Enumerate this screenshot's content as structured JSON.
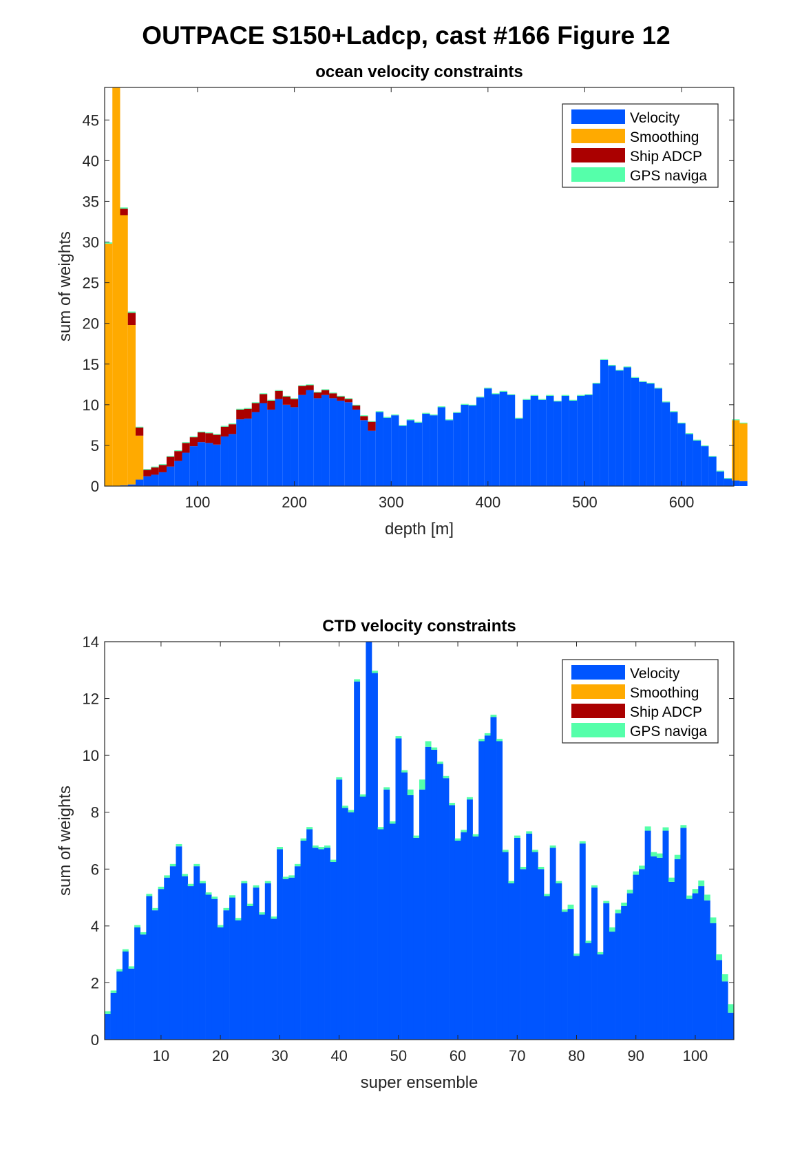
{
  "figure": {
    "title": "OUTPACE S150+Ladcp, cast #166  Figure 12"
  },
  "legend": {
    "entries": [
      {
        "label": "Velocity",
        "color": "#0055ff"
      },
      {
        "label": "Smoothing",
        "color": "#ffaa00"
      },
      {
        "label": "Ship ADCP",
        "color": "#aa0000"
      },
      {
        "label": "GPS naviga",
        "color": "#55ffaa"
      }
    ]
  },
  "chart_data": [
    {
      "type": "bar",
      "stacked": true,
      "title": "ocean velocity constraints",
      "xlabel": "depth [m]",
      "ylabel": "sum of weights",
      "xlim": [
        4,
        654
      ],
      "ylim": [
        0,
        49
      ],
      "xticks": [
        100,
        200,
        300,
        400,
        500,
        600
      ],
      "yticks": [
        0,
        5,
        10,
        15,
        20,
        25,
        30,
        35,
        40,
        45
      ],
      "legend_position": "top-right",
      "grid": false,
      "bin_width": 8,
      "x_start": 4,
      "series_names": [
        "Velocity",
        "Smoothing",
        "Ship ADCP",
        "GPS naviga"
      ],
      "bars": [
        [
          0,
          29.8,
          0,
          0.15
        ],
        [
          0,
          49,
          0,
          0.15
        ],
        [
          0.1,
          33.2,
          0.8,
          0.15
        ],
        [
          0.2,
          19.6,
          1.5,
          0.15
        ],
        [
          0.8,
          5.4,
          1.0,
          0.1
        ],
        [
          1.2,
          0,
          0.8,
          0.1
        ],
        [
          1.4,
          0,
          0.9,
          0.1
        ],
        [
          1.7,
          0,
          0.9,
          0.1
        ],
        [
          2.4,
          0,
          1.2,
          0.1
        ],
        [
          3.1,
          0,
          1.2,
          0.1
        ],
        [
          4.1,
          0,
          1.2,
          0.1
        ],
        [
          4.9,
          0,
          1.1,
          0.1
        ],
        [
          5.4,
          0,
          1.2,
          0.1
        ],
        [
          5.3,
          0,
          1.2,
          0.1
        ],
        [
          5.1,
          0,
          1.2,
          0.1
        ],
        [
          6.1,
          0,
          1.2,
          0.1
        ],
        [
          6.4,
          0,
          1.2,
          0.1
        ],
        [
          8.2,
          0,
          1.2,
          0.1
        ],
        [
          8.3,
          0,
          1.2,
          0.1
        ],
        [
          9.1,
          0,
          1.1,
          0.1
        ],
        [
          10.2,
          0,
          1.1,
          0.1
        ],
        [
          9.4,
          0,
          1.1,
          0.1
        ],
        [
          10.7,
          0,
          1.0,
          0.1
        ],
        [
          10.0,
          0,
          1.0,
          0.1
        ],
        [
          9.7,
          0,
          1.0,
          0.1
        ],
        [
          11.2,
          0,
          1.1,
          0.1
        ],
        [
          11.8,
          0,
          0.6,
          0.1
        ],
        [
          10.8,
          0,
          0.7,
          0.1
        ],
        [
          11.2,
          0,
          0.6,
          0.1
        ],
        [
          10.8,
          0,
          0.6,
          0.1
        ],
        [
          10.5,
          0,
          0.5,
          0.1
        ],
        [
          10.3,
          0,
          0.4,
          0.1
        ],
        [
          9.4,
          0,
          0.5,
          0.1
        ],
        [
          8.1,
          0,
          0.5,
          0.1
        ],
        [
          6.8,
          0,
          1.1,
          0.1
        ],
        [
          9.1,
          0,
          0,
          0.1
        ],
        [
          8.4,
          0,
          0,
          0.1
        ],
        [
          8.7,
          0,
          0,
          0.1
        ],
        [
          7.4,
          0,
          0,
          0.1
        ],
        [
          8.1,
          0,
          0,
          0.1
        ],
        [
          7.8,
          0,
          0,
          0.1
        ],
        [
          8.9,
          0,
          0,
          0.1
        ],
        [
          8.7,
          0,
          0,
          0.1
        ],
        [
          9.7,
          0,
          0,
          0.1
        ],
        [
          8.1,
          0,
          0,
          0.1
        ],
        [
          9.0,
          0,
          0,
          0.1
        ],
        [
          10.0,
          0,
          0,
          0.1
        ],
        [
          9.9,
          0,
          0,
          0.1
        ],
        [
          10.9,
          0,
          0,
          0.1
        ],
        [
          12.0,
          0,
          0,
          0.1
        ],
        [
          11.3,
          0,
          0,
          0.1
        ],
        [
          11.6,
          0,
          0,
          0.1
        ],
        [
          11.2,
          0,
          0,
          0.1
        ],
        [
          8.3,
          0,
          0,
          0.1
        ],
        [
          10.6,
          0,
          0,
          0.1
        ],
        [
          11.1,
          0,
          0,
          0.1
        ],
        [
          10.6,
          0,
          0,
          0.1
        ],
        [
          11.1,
          0,
          0,
          0.1
        ],
        [
          10.4,
          0,
          0,
          0.1
        ],
        [
          11.1,
          0,
          0,
          0.1
        ],
        [
          10.5,
          0,
          0,
          0.1
        ],
        [
          11.1,
          0,
          0,
          0.1
        ],
        [
          11.2,
          0,
          0,
          0.1
        ],
        [
          12.6,
          0,
          0,
          0.1
        ],
        [
          15.5,
          0,
          0,
          0.1
        ],
        [
          14.8,
          0,
          0,
          0.1
        ],
        [
          14.2,
          0,
          0,
          0.1
        ],
        [
          14.6,
          0,
          0,
          0.1
        ],
        [
          13.3,
          0,
          0,
          0.1
        ],
        [
          12.8,
          0,
          0,
          0.1
        ],
        [
          12.6,
          0,
          0,
          0.1
        ],
        [
          12.0,
          0,
          0,
          0.1
        ],
        [
          10.3,
          0,
          0,
          0.1
        ],
        [
          9.1,
          0,
          0,
          0.1
        ],
        [
          7.7,
          0,
          0,
          0.1
        ],
        [
          6.4,
          0,
          0,
          0.1
        ],
        [
          5.6,
          0,
          0,
          0.1
        ],
        [
          4.9,
          0,
          0,
          0.1
        ],
        [
          3.6,
          0,
          0,
          0.1
        ],
        [
          1.8,
          0,
          0,
          0.1
        ],
        [
          0.9,
          0,
          0,
          0.1
        ],
        [
          0.7,
          7.4,
          0,
          0.1
        ],
        [
          0.6,
          7.1,
          0,
          0.1
        ]
      ]
    },
    {
      "type": "bar",
      "stacked": true,
      "title": "CTD velocity constraints",
      "xlabel": "super ensemble",
      "ylabel": "sum of weights",
      "xlim": [
        0.5,
        106.5
      ],
      "ylim": [
        0,
        14
      ],
      "xticks": [
        10,
        20,
        30,
        40,
        50,
        60,
        70,
        80,
        90,
        100
      ],
      "yticks": [
        0,
        2,
        4,
        6,
        8,
        10,
        12,
        14
      ],
      "legend_position": "top-right",
      "grid": false,
      "series_names": [
        "Velocity",
        "GPS naviga"
      ],
      "velocity": [
        0.9,
        1.65,
        2.4,
        3.1,
        2.5,
        3.95,
        3.7,
        5.05,
        4.55,
        5.3,
        5.7,
        6.1,
        6.8,
        5.75,
        5.4,
        6.1,
        5.5,
        5.1,
        4.95,
        3.95,
        4.55,
        5.0,
        4.2,
        5.5,
        4.7,
        5.35,
        4.4,
        5.5,
        4.25,
        6.7,
        5.65,
        5.7,
        6.1,
        7.0,
        7.4,
        6.75,
        6.7,
        6.75,
        6.25,
        9.15,
        8.15,
        8.0,
        12.6,
        8.55,
        14.0,
        12.9,
        7.4,
        8.8,
        7.6,
        10.6,
        9.4,
        8.6,
        7.1,
        8.8,
        10.3,
        10.2,
        9.7,
        9.2,
        8.25,
        7.0,
        7.3,
        8.45,
        7.15,
        10.5,
        10.7,
        11.35,
        10.5,
        6.6,
        5.5,
        7.1,
        6.0,
        7.25,
        6.6,
        6.0,
        5.05,
        6.75,
        5.5,
        4.5,
        4.6,
        2.95,
        6.9,
        3.4,
        5.35,
        3.0,
        4.8,
        3.8,
        4.45,
        4.7,
        5.15,
        5.8,
        6.0,
        7.35,
        6.45,
        6.4,
        7.35,
        5.55,
        6.35,
        7.45,
        4.95,
        5.15,
        5.4,
        4.9,
        4.1,
        2.8,
        2.05,
        0.95
      ],
      "gps": [
        0.1,
        0.08,
        0.08,
        0.08,
        0.08,
        0.08,
        0.08,
        0.08,
        0.08,
        0.08,
        0.08,
        0.08,
        0.08,
        0.08,
        0.08,
        0.08,
        0.08,
        0.08,
        0.08,
        0.08,
        0.08,
        0.08,
        0.08,
        0.08,
        0.08,
        0.08,
        0.08,
        0.08,
        0.08,
        0.08,
        0.08,
        0.08,
        0.08,
        0.08,
        0.08,
        0.08,
        0.08,
        0.08,
        0.08,
        0.08,
        0.08,
        0.08,
        0.08,
        0.08,
        0.08,
        0.08,
        0.08,
        0.08,
        0.08,
        0.08,
        0.08,
        0.2,
        0.08,
        0.35,
        0.2,
        0.08,
        0.08,
        0.08,
        0.08,
        0.08,
        0.08,
        0.08,
        0.08,
        0.08,
        0.08,
        0.08,
        0.08,
        0.08,
        0.08,
        0.08,
        0.08,
        0.08,
        0.08,
        0.08,
        0.08,
        0.08,
        0.08,
        0.08,
        0.15,
        0.08,
        0.08,
        0.08,
        0.08,
        0.08,
        0.08,
        0.15,
        0.12,
        0.12,
        0.12,
        0.12,
        0.12,
        0.15,
        0.15,
        0.15,
        0.12,
        0.15,
        0.15,
        0.1,
        0.12,
        0.15,
        0.2,
        0.2,
        0.2,
        0.2,
        0.25,
        0.3
      ]
    }
  ]
}
